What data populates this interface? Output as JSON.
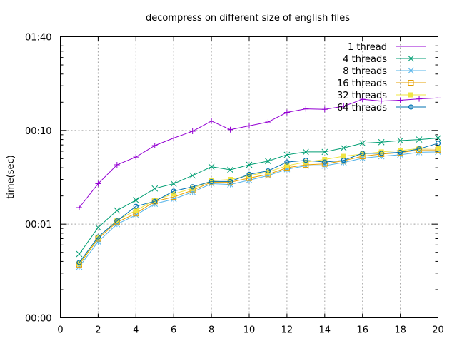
{
  "chart_data": {
    "type": "line",
    "title": "decompress on different size of english files",
    "xlabel": "",
    "ylabel": "time(sec)",
    "xlim": [
      0,
      20
    ],
    "ylim": [
      0.1,
      100
    ],
    "y_scale": "log",
    "x_ticks": [
      0,
      2,
      4,
      6,
      8,
      10,
      12,
      14,
      16,
      18,
      20
    ],
    "y_ticks": [
      {
        "value": 0.1,
        "label": "00:00"
      },
      {
        "value": 1,
        "label": "00:01"
      },
      {
        "value": 10,
        "label": "00:10"
      },
      {
        "value": 100,
        "label": "01:40"
      }
    ],
    "grid": true,
    "legend_position": "top-right",
    "x": [
      1,
      2,
      3,
      4,
      5,
      6,
      7,
      8,
      9,
      10,
      11,
      12,
      13,
      14,
      15,
      16,
      17,
      18,
      19,
      20
    ],
    "series": [
      {
        "name": "1 thread",
        "color": "#9400d3",
        "marker": "plus",
        "values": [
          1.5,
          2.7,
          4.3,
          5.2,
          6.9,
          8.3,
          9.8,
          12.6,
          10.2,
          11.2,
          12.3,
          15.6,
          17.0,
          16.8,
          18.1,
          21.5,
          20.6,
          21.0,
          21.7,
          22.2
        ]
      },
      {
        "name": "4 threads",
        "color": "#009e73",
        "marker": "cross",
        "values": [
          0.48,
          0.92,
          1.4,
          1.8,
          2.4,
          2.7,
          3.3,
          4.1,
          3.8,
          4.3,
          4.7,
          5.5,
          5.9,
          5.9,
          6.5,
          7.3,
          7.5,
          7.8,
          8.0,
          8.3
        ]
      },
      {
        "name": "8 threads",
        "color": "#56b4e9",
        "marker": "star",
        "values": [
          0.35,
          0.65,
          1.0,
          1.25,
          1.65,
          1.85,
          2.2,
          2.7,
          2.65,
          2.95,
          3.3,
          3.85,
          4.2,
          4.2,
          4.55,
          5.05,
          5.3,
          5.5,
          5.85,
          5.9
        ]
      },
      {
        "name": "16 threads",
        "color": "#e69f00",
        "marker": "square",
        "values": [
          0.37,
          0.7,
          1.05,
          1.3,
          1.75,
          1.95,
          2.3,
          2.8,
          2.8,
          3.1,
          3.4,
          4.0,
          4.3,
          4.4,
          4.75,
          5.3,
          5.6,
          5.8,
          6.2,
          6.2
        ]
      },
      {
        "name": "32 threads",
        "color": "#f0e442",
        "marker": "filled-square",
        "values": [
          0.38,
          0.72,
          1.1,
          1.4,
          1.8,
          2.1,
          2.4,
          2.9,
          3.0,
          3.3,
          3.6,
          4.2,
          4.6,
          4.9,
          5.3,
          5.6,
          5.9,
          6.1,
          6.4,
          6.5
        ]
      },
      {
        "name": "64 threads",
        "color": "#0072b2",
        "marker": "circle",
        "values": [
          0.39,
          0.73,
          1.08,
          1.55,
          1.75,
          2.25,
          2.5,
          2.85,
          2.85,
          3.4,
          3.7,
          4.6,
          4.8,
          4.6,
          4.8,
          5.7,
          5.7,
          5.85,
          6.35,
          7.3
        ]
      }
    ]
  }
}
